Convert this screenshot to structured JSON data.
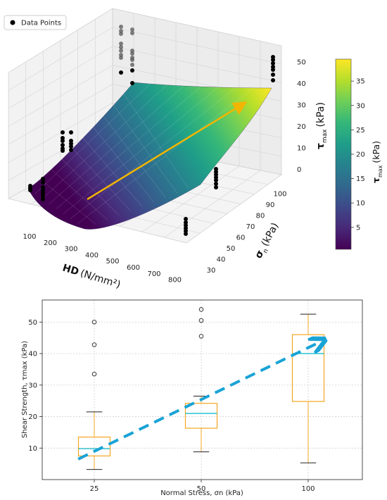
{
  "chart_data": [
    {
      "type": "surface",
      "legend": {
        "label": "Data Points",
        "placement": "top-left"
      },
      "xlabel": {
        "main": "HD",
        "unit": "(N/mm²)"
      },
      "ylabel": {
        "main": "σ",
        "sub": "n",
        "unit": "(kPa)"
      },
      "zlabel": {
        "main": "τ",
        "sub": "max",
        "unit": "(kPa)"
      },
      "x_ticks": [
        "100",
        "200",
        "300",
        "400",
        "500",
        "600",
        "700",
        "800"
      ],
      "y_ticks": [
        "30",
        "40",
        "50",
        "60",
        "70",
        "80",
        "90",
        "100"
      ],
      "z_ticks": [
        "0",
        "10",
        "20",
        "30",
        "40",
        "50"
      ],
      "colorbar": {
        "label_main": "τ",
        "label_sub": "max",
        "label_unit": "(kPa)",
        "ticks": [
          "5",
          "10",
          "15",
          "20",
          "25",
          "30",
          "35"
        ],
        "range": [
          0.5,
          39.5
        ],
        "colors": [
          "#440154",
          "#482878",
          "#3e4989",
          "#31688e",
          "#26828e",
          "#1f9e89",
          "#35b779",
          "#6ece58",
          "#b5de2b",
          "#fde725"
        ]
      },
      "trend_arrow_color": "#f2b500",
      "point_color": "#000000"
    },
    {
      "type": "box",
      "categories": [
        "25",
        "50",
        "100"
      ],
      "series": [
        {
          "whisker_low": 3.2,
          "q1": 7.5,
          "median": 9.8,
          "q3": 13.5,
          "whisker_high": 21.5,
          "outliers": [
            33.5,
            42.8,
            50.0
          ]
        },
        {
          "whisker_low": 8.8,
          "q1": 16.3,
          "median": 21.0,
          "q3": 24.2,
          "whisker_high": 26.5,
          "outliers": [
            45.5,
            50.5,
            54.0
          ]
        },
        {
          "whisker_low": 5.3,
          "q1": 24.8,
          "median": 40.0,
          "q3": 46.0,
          "whisker_high": 52.5,
          "outliers": []
        }
      ],
      "xlabel": "Normal Stress, σn (kPa)",
      "ylabel": "Shear Strength, τmax (kPa)",
      "ylim": [
        0,
        57
      ],
      "y_ticks": [
        10,
        20,
        30,
        40,
        50
      ],
      "grid": true,
      "box_color": "#f5a623",
      "median_color": "#17becf",
      "trend_color": "#1aa3d6",
      "trend_start": [
        0.85,
        6.5
      ],
      "trend_end": [
        3.1,
        43.5
      ]
    }
  ]
}
